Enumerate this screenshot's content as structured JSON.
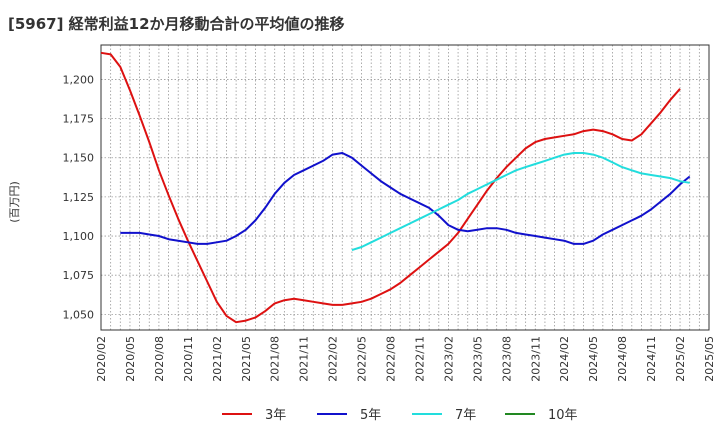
{
  "chart_data": {
    "type": "line",
    "title": "[5967]  経常利益12か月移動合計の平均値の推移",
    "ylabel": "(百万円)",
    "xlabel": "",
    "ylim": [
      1040,
      1222
    ],
    "yticks": [
      1050,
      1075,
      1100,
      1125,
      1150,
      1175,
      1200
    ],
    "ytick_labels": [
      "1,050",
      "1,075",
      "1,100",
      "1,125",
      "1,150",
      "1,175",
      "1,200"
    ],
    "xticks": [
      "2020/02",
      "2020/05",
      "2020/08",
      "2020/11",
      "2021/02",
      "2021/05",
      "2021/08",
      "2021/11",
      "2022/02",
      "2022/05",
      "2022/08",
      "2022/11",
      "2023/02",
      "2023/05",
      "2023/08",
      "2023/11",
      "2024/02",
      "2024/05",
      "2024/08",
      "2024/11",
      "2025/02",
      "2025/05"
    ],
    "grid": true,
    "legend_position": "bottom",
    "series": [
      {
        "name": "3年",
        "color": "#dd1111",
        "points": [
          [
            "2020/02",
            1217
          ],
          [
            "2020/03",
            1216
          ],
          [
            "2020/04",
            1208
          ],
          [
            "2020/05",
            1193
          ],
          [
            "2020/06",
            1177
          ],
          [
            "2020/07",
            1160
          ],
          [
            "2020/08",
            1142
          ],
          [
            "2020/09",
            1126
          ],
          [
            "2020/10",
            1111
          ],
          [
            "2020/11",
            1097
          ],
          [
            "2020/12",
            1084
          ],
          [
            "2021/01",
            1071
          ],
          [
            "2021/02",
            1058
          ],
          [
            "2021/03",
            1049
          ],
          [
            "2021/04",
            1045
          ],
          [
            "2021/05",
            1046
          ],
          [
            "2021/06",
            1048
          ],
          [
            "2021/07",
            1052
          ],
          [
            "2021/08",
            1057
          ],
          [
            "2021/09",
            1059
          ],
          [
            "2021/10",
            1060
          ],
          [
            "2021/11",
            1059
          ],
          [
            "2021/12",
            1058
          ],
          [
            "2022/01",
            1057
          ],
          [
            "2022/02",
            1056
          ],
          [
            "2022/03",
            1056
          ],
          [
            "2022/04",
            1057
          ],
          [
            "2022/05",
            1058
          ],
          [
            "2022/06",
            1060
          ],
          [
            "2022/07",
            1063
          ],
          [
            "2022/08",
            1066
          ],
          [
            "2022/09",
            1070
          ],
          [
            "2022/10",
            1075
          ],
          [
            "2022/11",
            1080
          ],
          [
            "2022/12",
            1085
          ],
          [
            "2023/01",
            1090
          ],
          [
            "2023/02",
            1095
          ],
          [
            "2023/03",
            1102
          ],
          [
            "2023/04",
            1111
          ],
          [
            "2023/05",
            1120
          ],
          [
            "2023/06",
            1129
          ],
          [
            "2023/07",
            1137
          ],
          [
            "2023/08",
            1144
          ],
          [
            "2023/09",
            1150
          ],
          [
            "2023/10",
            1156
          ],
          [
            "2023/11",
            1160
          ],
          [
            "2023/12",
            1162
          ],
          [
            "2024/01",
            1163
          ],
          [
            "2024/02",
            1164
          ],
          [
            "2024/03",
            1165
          ],
          [
            "2024/04",
            1167
          ],
          [
            "2024/05",
            1168
          ],
          [
            "2024/06",
            1167
          ],
          [
            "2024/07",
            1165
          ],
          [
            "2024/08",
            1162
          ],
          [
            "2024/09",
            1161
          ],
          [
            "2024/10",
            1165
          ],
          [
            "2024/11",
            1172
          ],
          [
            "2024/12",
            1179
          ],
          [
            "2025/01",
            1187
          ],
          [
            "2025/02",
            1194
          ]
        ]
      },
      {
        "name": "5年",
        "color": "#1111cc",
        "points": [
          [
            "2020/04",
            1102
          ],
          [
            "2020/05",
            1102
          ],
          [
            "2020/06",
            1102
          ],
          [
            "2020/07",
            1101
          ],
          [
            "2020/08",
            1100
          ],
          [
            "2020/09",
            1098
          ],
          [
            "2020/10",
            1097
          ],
          [
            "2020/11",
            1096
          ],
          [
            "2020/12",
            1095
          ],
          [
            "2021/01",
            1095
          ],
          [
            "2021/02",
            1096
          ],
          [
            "2021/03",
            1097
          ],
          [
            "2021/04",
            1100
          ],
          [
            "2021/05",
            1104
          ],
          [
            "2021/06",
            1110
          ],
          [
            "2021/07",
            1118
          ],
          [
            "2021/08",
            1127
          ],
          [
            "2021/09",
            1134
          ],
          [
            "2021/10",
            1139
          ],
          [
            "2021/11",
            1142
          ],
          [
            "2021/12",
            1145
          ],
          [
            "2022/01",
            1148
          ],
          [
            "2022/02",
            1152
          ],
          [
            "2022/03",
            1153
          ],
          [
            "2022/04",
            1150
          ],
          [
            "2022/05",
            1145
          ],
          [
            "2022/06",
            1140
          ],
          [
            "2022/07",
            1135
          ],
          [
            "2022/08",
            1131
          ],
          [
            "2022/09",
            1127
          ],
          [
            "2022/10",
            1124
          ],
          [
            "2022/11",
            1121
          ],
          [
            "2022/12",
            1118
          ],
          [
            "2023/01",
            1113
          ],
          [
            "2023/02",
            1107
          ],
          [
            "2023/03",
            1104
          ],
          [
            "2023/04",
            1103
          ],
          [
            "2023/05",
            1104
          ],
          [
            "2023/06",
            1105
          ],
          [
            "2023/07",
            1105
          ],
          [
            "2023/08",
            1104
          ],
          [
            "2023/09",
            1102
          ],
          [
            "2023/10",
            1101
          ],
          [
            "2023/11",
            1100
          ],
          [
            "2023/12",
            1099
          ],
          [
            "2024/01",
            1098
          ],
          [
            "2024/02",
            1097
          ],
          [
            "2024/03",
            1095
          ],
          [
            "2024/04",
            1095
          ],
          [
            "2024/05",
            1097
          ],
          [
            "2024/06",
            1101
          ],
          [
            "2024/07",
            1104
          ],
          [
            "2024/08",
            1107
          ],
          [
            "2024/09",
            1110
          ],
          [
            "2024/10",
            1113
          ],
          [
            "2024/11",
            1117
          ],
          [
            "2024/12",
            1122
          ],
          [
            "2025/01",
            1127
          ],
          [
            "2025/02",
            1133
          ],
          [
            "2025/03",
            1138
          ]
        ]
      },
      {
        "name": "7年",
        "color": "#22dddd",
        "points": [
          [
            "2022/04",
            1091
          ],
          [
            "2022/05",
            1093
          ],
          [
            "2022/06",
            1096
          ],
          [
            "2022/07",
            1099
          ],
          [
            "2022/08",
            1102
          ],
          [
            "2022/09",
            1105
          ],
          [
            "2022/10",
            1108
          ],
          [
            "2022/11",
            1111
          ],
          [
            "2022/12",
            1114
          ],
          [
            "2023/01",
            1117
          ],
          [
            "2023/02",
            1120
          ],
          [
            "2023/03",
            1123
          ],
          [
            "2023/04",
            1127
          ],
          [
            "2023/05",
            1130
          ],
          [
            "2023/06",
            1133
          ],
          [
            "2023/07",
            1136
          ],
          [
            "2023/08",
            1139
          ],
          [
            "2023/09",
            1142
          ],
          [
            "2023/10",
            1144
          ],
          [
            "2023/11",
            1146
          ],
          [
            "2023/12",
            1148
          ],
          [
            "2024/01",
            1150
          ],
          [
            "2024/02",
            1152
          ],
          [
            "2024/03",
            1153
          ],
          [
            "2024/04",
            1153
          ],
          [
            "2024/05",
            1152
          ],
          [
            "2024/06",
            1150
          ],
          [
            "2024/07",
            1147
          ],
          [
            "2024/08",
            1144
          ],
          [
            "2024/09",
            1142
          ],
          [
            "2024/10",
            1140
          ],
          [
            "2024/11",
            1139
          ],
          [
            "2024/12",
            1138
          ],
          [
            "2025/01",
            1137
          ],
          [
            "2025/02",
            1135
          ],
          [
            "2025/03",
            1134
          ]
        ]
      },
      {
        "name": "10年",
        "color": "#228822",
        "points": []
      }
    ]
  }
}
